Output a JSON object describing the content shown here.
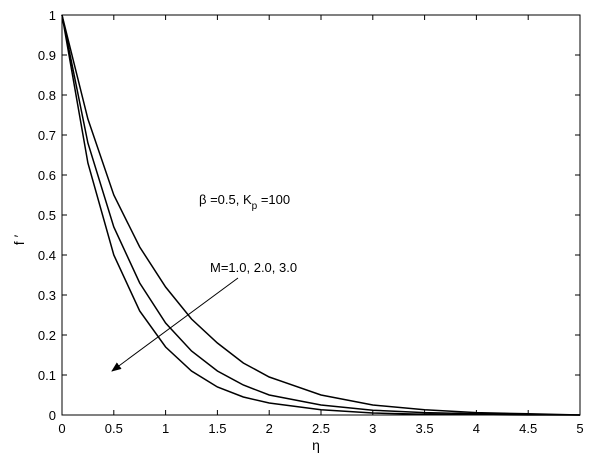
{
  "chart_data": {
    "type": "line",
    "x_label": "η",
    "y_label": "f ′",
    "annotations": [
      {
        "text": "β =0.5, K",
        "sub": "p",
        "rest": " =100"
      },
      {
        "text": "M=1.0, 2.0, 3.0"
      }
    ],
    "x": [
      0,
      0.25,
      0.5,
      0.75,
      1,
      1.25,
      1.5,
      1.75,
      2,
      2.5,
      3,
      3.5,
      4,
      4.5,
      5
    ],
    "series": [
      {
        "color": "#000000",
        "values": [
          1,
          0.74,
          0.55,
          0.42,
          0.32,
          0.24,
          0.18,
          0.13,
          0.095,
          0.05,
          0.025,
          0.013,
          0.006,
          0.003,
          0
        ]
      },
      {
        "color": "#000000",
        "values": [
          1,
          0.68,
          0.47,
          0.33,
          0.23,
          0.16,
          0.11,
          0.075,
          0.05,
          0.025,
          0.012,
          0.006,
          0.003,
          0.001,
          0
        ]
      },
      {
        "color": "#000000",
        "values": [
          1,
          0.63,
          0.4,
          0.26,
          0.17,
          0.11,
          0.07,
          0.045,
          0.03,
          0.013,
          0.005,
          0.002,
          0.001,
          0,
          0
        ]
      }
    ],
    "xlim": [
      0,
      5
    ],
    "ylim": [
      0,
      1
    ],
    "xticks": [
      0,
      0.5,
      1,
      1.5,
      2,
      2.5,
      3,
      3.5,
      4,
      4.5,
      5
    ],
    "yticks": [
      0,
      0.1,
      0.2,
      0.3,
      0.4,
      0.5,
      0.6,
      0.7,
      0.8,
      0.9,
      1
    ]
  }
}
